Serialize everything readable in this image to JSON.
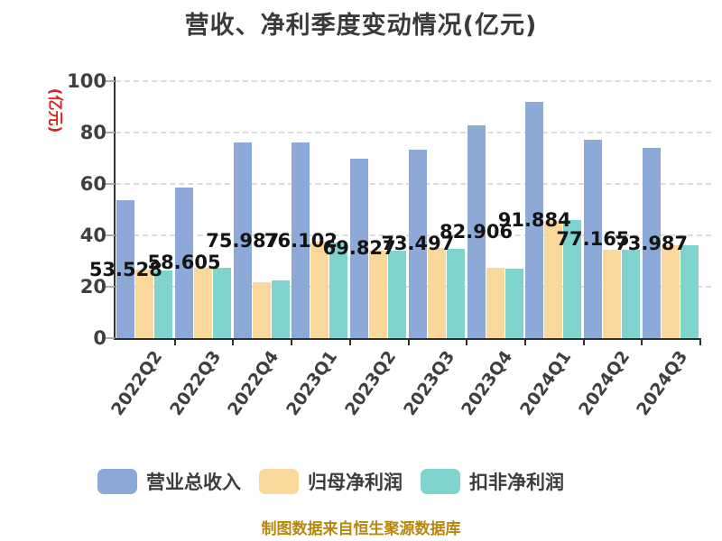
{
  "title": "营收、净利季度变动情况(亿元)",
  "y_axis": {
    "unit_label": "(亿元)",
    "tick_labels": [
      "0",
      "20",
      "40",
      "60",
      "80",
      "100"
    ],
    "min": 0,
    "max": 100
  },
  "chart_data": {
    "type": "bar",
    "title": "营收、净利季度变动情况(亿元)",
    "xlabel": "",
    "ylabel": "(亿元)",
    "ylim": [
      0,
      100
    ],
    "grid": "horizontal-dashed",
    "legend_position": "bottom",
    "categories": [
      "2022Q2",
      "2022Q3",
      "2022Q4",
      "2023Q1",
      "2023Q2",
      "2023Q3",
      "2023Q4",
      "2024Q1",
      "2024Q2",
      "2024Q3"
    ],
    "series": [
      {
        "name": "营业总收入",
        "color": "#8CA9D8",
        "values": [
          53.528,
          58.605,
          75.987,
          76.102,
          69.827,
          73.497,
          82.906,
          91.884,
          77.165,
          73.987
        ],
        "value_labels": [
          "53.528",
          "58.605",
          "75.987",
          "76.102",
          "69.827",
          "73.497",
          "82.906",
          "91.884",
          "77.165",
          "73.987"
        ]
      },
      {
        "name": "归母净利润",
        "color": "#FAD79B",
        "values": [
          26.7,
          27.4,
          21.8,
          37.5,
          34.0,
          35.1,
          27.4,
          45.6,
          34.4,
          36.1
        ]
      },
      {
        "name": "扣非净利润",
        "color": "#7FD4CE",
        "values": [
          26.3,
          27.4,
          22.5,
          37.2,
          34.0,
          34.7,
          27.0,
          46.0,
          34.4,
          36.1
        ]
      }
    ]
  },
  "legend": {
    "items": [
      {
        "label": "营业总收入",
        "color": "#8CA9D8"
      },
      {
        "label": "归母净利润",
        "color": "#FAD79B"
      },
      {
        "label": "扣非净利润",
        "color": "#7FD4CE"
      }
    ]
  },
  "footer": {
    "text": "制图数据来自恒生聚源数据库",
    "color": "#B8860B"
  },
  "colors": {
    "title_text": "#3A3A3A",
    "axis_text": "#3F3F3F",
    "bar_label_text": "#141414",
    "axis_line": "#2F2F2F",
    "gridline": "#DCDCDC",
    "y_unit_label": "#E02121"
  }
}
